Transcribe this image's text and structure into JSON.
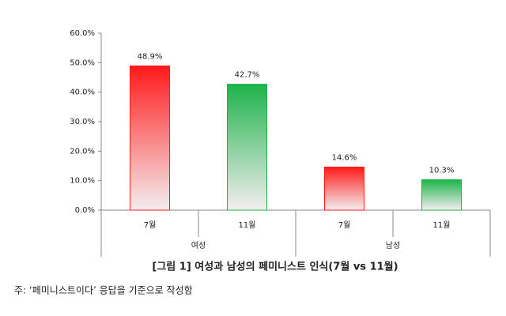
{
  "chart_data": {
    "type": "bar",
    "title": "[그림 1] 여성과 남성의 페미니스트 인식(7월 vs 11월)",
    "note": "주: ‘페미니스트이다’ 응답을 기준으로 작성함",
    "categories": [
      "7월",
      "11월",
      "7월",
      "11월"
    ],
    "groups": [
      "여성",
      "남성"
    ],
    "values": [
      48.9,
      42.7,
      14.6,
      10.3
    ],
    "value_labels": [
      "48.9%",
      "42.7%",
      "14.6%",
      "10.3%"
    ],
    "colors": [
      "#ff1a1a",
      "#1db34a",
      "#ff1a1a",
      "#1db34a"
    ],
    "ylim": [
      0,
      60
    ],
    "yticks": [
      {
        "value": 0,
        "label": "0.0%"
      },
      {
        "value": 10,
        "label": "10.0%"
      },
      {
        "value": 20,
        "label": "20.0%"
      },
      {
        "value": 30,
        "label": "30.0%"
      },
      {
        "value": 40,
        "label": "40.0%"
      },
      {
        "value": 50,
        "label": "50.0%"
      },
      {
        "value": 60,
        "label": "60.0%"
      }
    ]
  }
}
